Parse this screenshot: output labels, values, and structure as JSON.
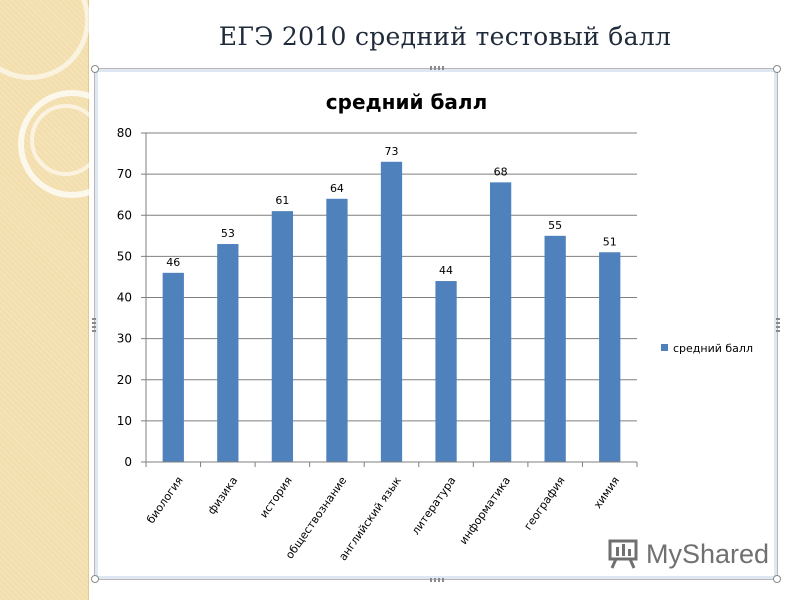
{
  "slide": {
    "title": "ЕГЭ 2010 средний тестовый балл"
  },
  "watermark": {
    "text": "MyShared"
  },
  "colors": {
    "bar": "#4f81bd",
    "gridline": "#7f7f7f",
    "background_band": "#f3dfae"
  },
  "chart_data": {
    "type": "bar",
    "title": "средний балл",
    "categories": [
      "биология",
      "физика",
      "история",
      "обществознание",
      "английский язык",
      "литература",
      "информатика",
      "география",
      "химия"
    ],
    "series": [
      {
        "name": "средний балл",
        "values": [
          46,
          53,
          61,
          64,
          73,
          44,
          68,
          55,
          51
        ]
      }
    ],
    "ylim": [
      0,
      80
    ],
    "yticks": [
      0,
      10,
      20,
      30,
      40,
      50,
      60,
      70,
      80
    ],
    "grid": true,
    "legend": "right",
    "data_labels": true
  }
}
